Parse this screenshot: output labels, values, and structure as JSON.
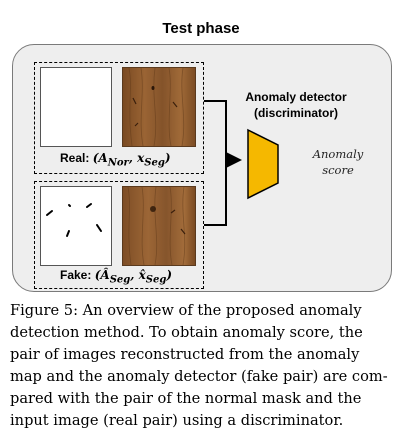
{
  "header": {
    "title": "Test phase"
  },
  "real_pair": {
    "label": "Real: ",
    "math": "(A<sub>Nor</sub>, x<sub>Seg</sub>)"
  },
  "fake_pair": {
    "label": "Fake: ",
    "math": "(Â<sub>Seg</sub>, x̂<sub>Seg</sub>)"
  },
  "detector": {
    "line1": "Anomaly detector",
    "line2": "(discriminator)"
  },
  "output": {
    "line1": "Anomaly",
    "line2": "score"
  },
  "colors": {
    "detector_fill": "#f5b800",
    "panel_bg": "#eeeeee",
    "wood": "#8b5a2b"
  },
  "caption": {
    "lines": [
      "Figure 5:  An overview of the proposed anomaly",
      "detection method.  To obtain anomaly score, the",
      "pair of images reconstructed from the anomaly",
      "map and the anomaly detector (fake pair) are com-",
      "pared with the pair of the normal mask and the",
      "input image (real pair) using a discriminator."
    ]
  }
}
